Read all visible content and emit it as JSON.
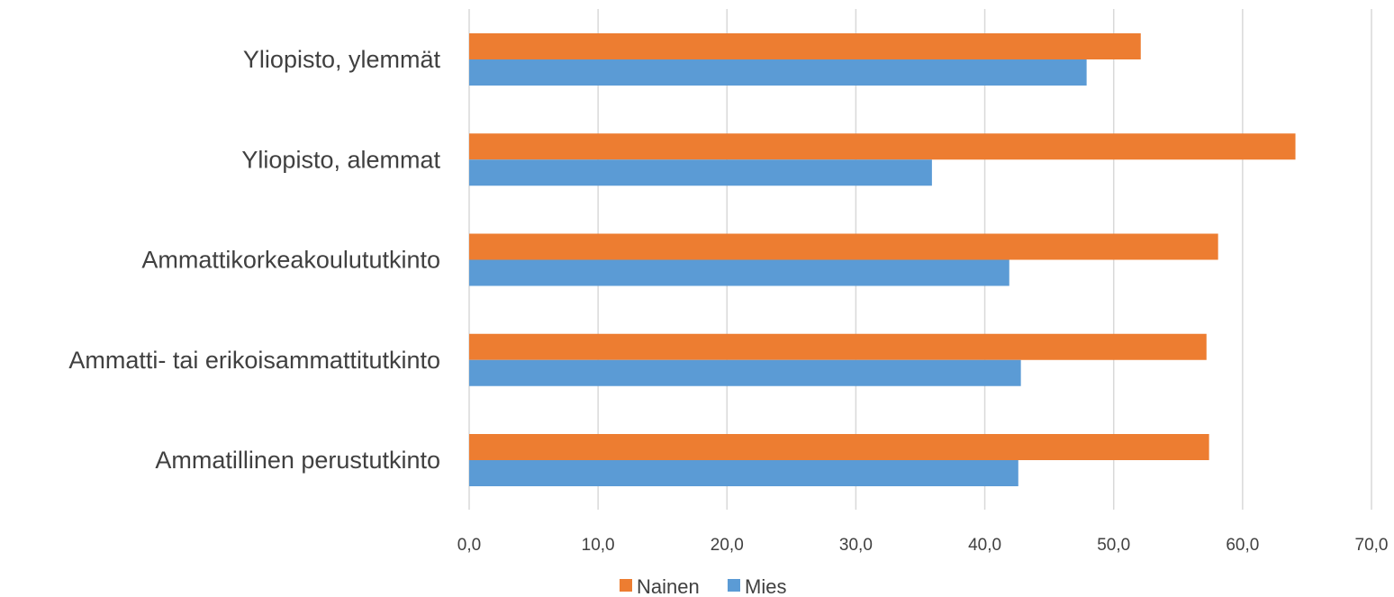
{
  "chart_data": {
    "type": "bar",
    "orientation": "horizontal",
    "categories": [
      "Yliopisto, ylemmät",
      "Yliopisto, alemmat",
      "Ammattikorkeakoulututkinto",
      "Ammatti- tai erikoisammattitutkinto",
      "Ammatillinen perustutkinto"
    ],
    "series": [
      {
        "name": "Nainen",
        "color": "#ED7D31",
        "values": [
          52.1,
          64.1,
          58.1,
          57.2,
          57.4
        ]
      },
      {
        "name": "Mies",
        "color": "#5B9BD5",
        "values": [
          47.9,
          35.9,
          41.9,
          42.8,
          42.6
        ]
      }
    ],
    "xlim": [
      0,
      70
    ],
    "xticks": [
      "0,0",
      "10,0",
      "20,0",
      "30,0",
      "40,0",
      "50,0",
      "60,0",
      "70,0"
    ],
    "grid": true,
    "legend": "bottom"
  }
}
